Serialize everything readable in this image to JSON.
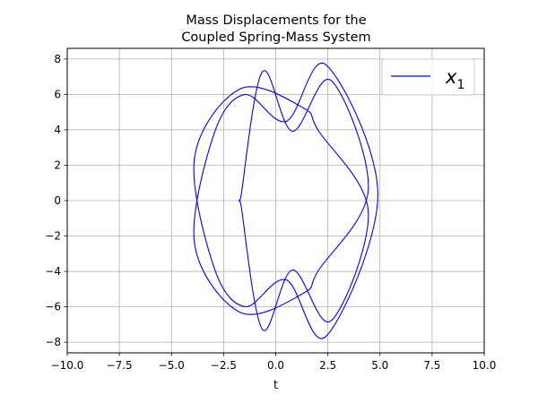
{
  "chart_data": {
    "type": "line",
    "title_lines": [
      "Mass Displacements for the",
      "Coupled Spring-Mass System"
    ],
    "xlabel": "t",
    "ylabel": "",
    "xlim": [
      -10,
      10
    ],
    "ylim": [
      -8.6,
      8.6
    ],
    "xticks": [
      -10,
      -7.5,
      -5,
      -2.5,
      0,
      2.5,
      5,
      7.5,
      10
    ],
    "xtick_labels": [
      "−10.0",
      "−7.5",
      "−5.0",
      "−2.5",
      "0.0",
      "2.5",
      "5.0",
      "7.5",
      "10.0"
    ],
    "yticks": [
      -8,
      -6,
      -4,
      -2,
      0,
      2,
      4,
      6,
      8
    ],
    "ytick_labels": [
      "−8",
      "−6",
      "−4",
      "−2",
      "0",
      "2",
      "4",
      "6",
      "8"
    ],
    "grid": true,
    "legend_position": "top-right",
    "series": [
      {
        "name": "x",
        "name_subscript": "1",
        "color": "#0000ff",
        "points": [
          [
            -1.63,
            0.53
          ],
          [
            -0.63,
            7.29
          ],
          [
            0.8,
            3.92
          ],
          [
            2.64,
            6.8
          ],
          [
            4.44,
            0.62
          ],
          [
            2.05,
            -3.94
          ],
          [
            1.33,
            -5.23
          ],
          [
            -1.67,
            -6.33
          ],
          [
            -3.89,
            -2.46
          ],
          [
            -2.96,
            3.77
          ],
          [
            -1.48,
            5.99
          ],
          [
            0.51,
            4.48
          ],
          [
            2.4,
            7.68
          ],
          [
            4.9,
            0.33
          ],
          [
            2.4,
            -7.68
          ],
          [
            0.51,
            -4.48
          ],
          [
            -1.48,
            -5.99
          ],
          [
            -2.96,
            -3.77
          ],
          [
            -3.89,
            2.46
          ],
          [
            -1.67,
            6.33
          ],
          [
            1.33,
            5.23
          ],
          [
            2.05,
            3.94
          ],
          [
            4.44,
            -0.62
          ],
          [
            2.64,
            -6.8
          ],
          [
            0.8,
            -3.92
          ],
          [
            -0.63,
            -7.29
          ],
          [
            -1.63,
            -0.53
          ]
        ]
      }
    ]
  }
}
